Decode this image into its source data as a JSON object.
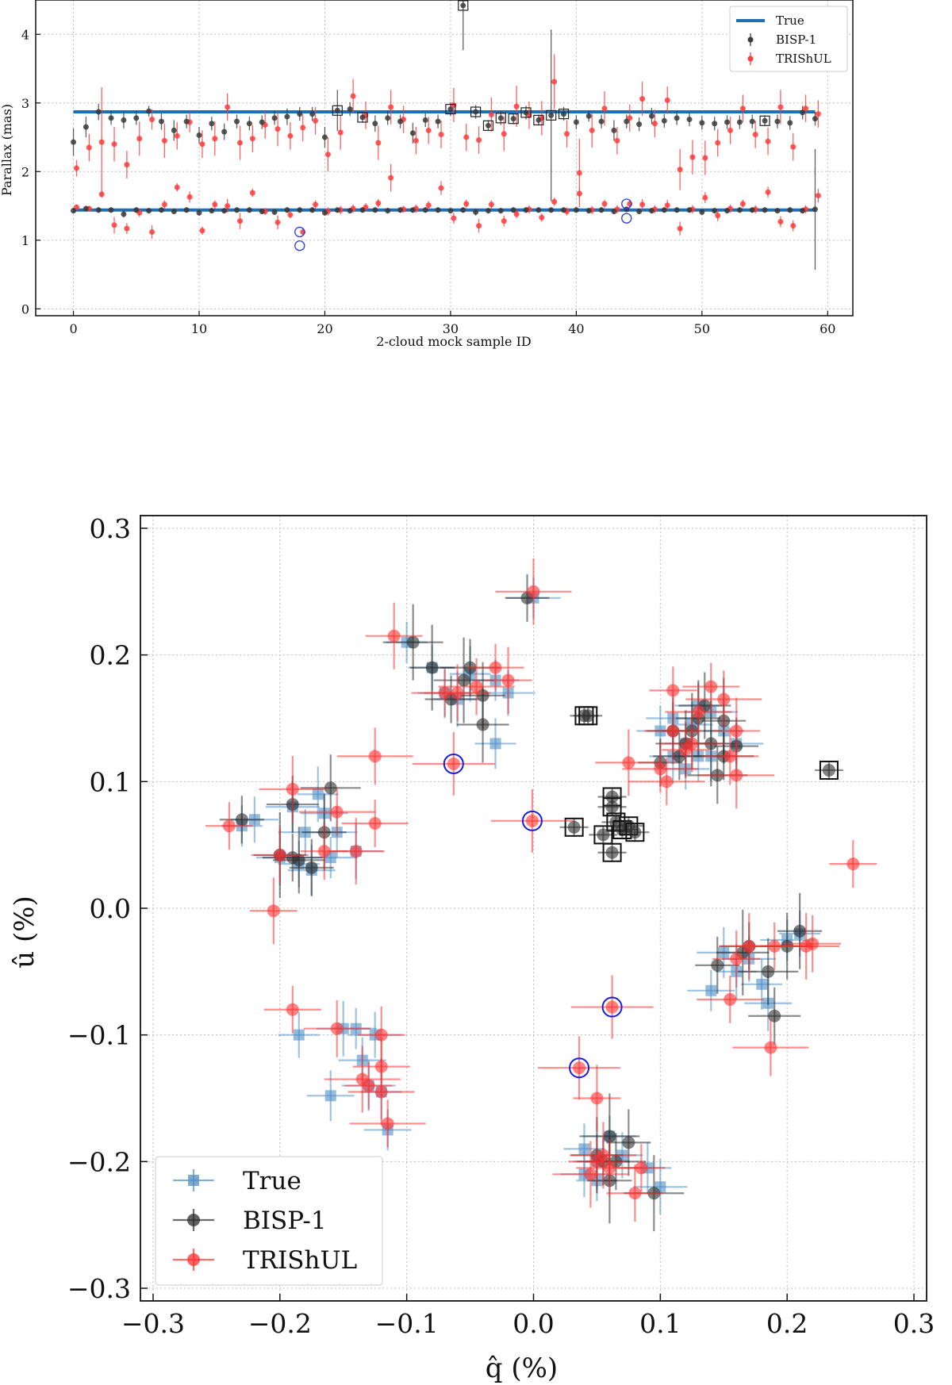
{
  "chart_data": [
    {
      "type": "scatter",
      "title": "",
      "xlabel": "2-cloud mock sample ID",
      "ylabel": "Parallax (mas)",
      "xlim": [
        -3,
        62
      ],
      "ylim": [
        -0.1,
        4.5
      ],
      "xticks": [
        0,
        10,
        20,
        30,
        40,
        50,
        60
      ],
      "yticks": [
        0,
        1,
        2,
        3,
        4
      ],
      "grid": true,
      "legend_position": "top-right",
      "legend": [
        "True",
        "BISP-1",
        "TRIShUL"
      ],
      "colors": {
        "true": "#1f6fb4",
        "bisp": "#3a3a3a",
        "trishul": "#ff3b3b",
        "ring": "#2b35e6"
      },
      "true_far": 2.87,
      "true_near": 1.44,
      "bisp_far": [
        2.43,
        2.65,
        2.87,
        2.78,
        2.75,
        2.78,
        2.88,
        2.73,
        2.6,
        2.73,
        2.53,
        2.7,
        2.58,
        2.73,
        2.7,
        2.72,
        2.78,
        2.8,
        2.84,
        2.84,
        2.5,
        2.89,
        2.91,
        2.79,
        2.7,
        2.78,
        2.73,
        2.56,
        2.75,
        2.73,
        2.91,
        4.42,
        2.87,
        2.67,
        2.78,
        2.77,
        2.86,
        2.75,
        2.82,
        2.84,
        2.72,
        2.81,
        2.73,
        2.6,
        2.73,
        2.69,
        2.81,
        2.74,
        2.78,
        2.76,
        2.71,
        2.7,
        2.72,
        2.72,
        2.73,
        2.74,
        2.73,
        2.71,
        2.86,
        2.77
      ],
      "bisp_far_err": [
        0.2,
        0.15,
        0.12,
        0.1,
        0.12,
        0.1,
        0.08,
        0.12,
        0.15,
        0.1,
        0.12,
        0.1,
        0.12,
        0.1,
        0.1,
        0.1,
        0.1,
        0.12,
        0.1,
        0.1,
        0.15,
        0.3,
        0.1,
        0.08,
        0.12,
        0.1,
        0.1,
        0.15,
        0.1,
        0.1,
        0.1,
        0.65,
        0.1,
        0.08,
        0.1,
        0.08,
        0.1,
        0.08,
        1.25,
        0.1,
        0.1,
        0.08,
        0.1,
        0.15,
        0.1,
        0.1,
        0.12,
        0.1,
        0.1,
        0.1,
        0.1,
        0.1,
        0.1,
        0.1,
        0.1,
        0.08,
        0.1,
        0.1,
        0.1,
        0.1
      ],
      "trishul_far": [
        2.05,
        2.35,
        2.43,
        2.4,
        2.1,
        2.48,
        2.76,
        2.45,
        2.52,
        2.72,
        2.4,
        2.48,
        2.94,
        2.42,
        2.48,
        2.68,
        2.62,
        2.52,
        2.64,
        2.74,
        2.25,
        2.57,
        3.1,
        2.82,
        2.42,
        2.94,
        2.76,
        2.45,
        2.6,
        2.54,
        2.97,
        2.5,
        2.46,
        2.83,
        2.55,
        2.95,
        2.82,
        2.78,
        3.31,
        2.55,
        1.98,
        2.6,
        2.92,
        2.45,
        2.78,
        3.06,
        2.7,
        3.04,
        2.03,
        2.21,
        2.2,
        2.42,
        2.6,
        2.92,
        2.54,
        2.44,
        2.94,
        2.36,
        2.92,
        2.84
      ],
      "trishul_far_err": [
        0.12,
        0.2,
        0.8,
        0.25,
        0.2,
        0.25,
        0.15,
        0.25,
        0.2,
        0.15,
        0.2,
        0.25,
        0.2,
        0.25,
        0.2,
        0.2,
        0.25,
        0.2,
        0.2,
        0.2,
        0.25,
        0.25,
        0.25,
        0.2,
        0.25,
        0.25,
        0.2,
        0.2,
        0.2,
        0.2,
        0.25,
        0.2,
        0.2,
        0.25,
        0.25,
        0.3,
        0.2,
        0.25,
        0.4,
        0.2,
        0.5,
        0.25,
        0.25,
        0.2,
        0.2,
        0.25,
        0.2,
        0.2,
        0.3,
        0.25,
        0.25,
        0.2,
        0.2,
        0.2,
        0.2,
        0.2,
        0.25,
        0.2,
        0.2,
        0.2
      ],
      "bisp_near": [
        1.43,
        1.46,
        1.44,
        1.44,
        1.38,
        1.44,
        1.43,
        1.44,
        1.42,
        1.44,
        1.4,
        1.43,
        1.43,
        1.44,
        1.44,
        1.42,
        1.41,
        1.44,
        1.44,
        1.44,
        1.4,
        1.44,
        1.43,
        1.44,
        1.44,
        1.43,
        1.44,
        1.44,
        1.44,
        1.44,
        1.43,
        1.44,
        1.41,
        1.43,
        1.43,
        1.44,
        1.44,
        1.44,
        1.44,
        1.44,
        1.44,
        1.43,
        1.44,
        1.42,
        1.45,
        1.42,
        1.43,
        1.44,
        1.44,
        1.44,
        1.41,
        1.43,
        1.43,
        1.44,
        1.44,
        1.44,
        1.43,
        1.44,
        1.43,
        1.45
      ],
      "bisp_near_err": [
        0.04,
        0.04,
        0.04,
        0.04,
        0.05,
        0.04,
        0.04,
        0.04,
        0.04,
        0.04,
        0.04,
        0.04,
        0.04,
        0.04,
        0.04,
        0.04,
        0.04,
        0.04,
        0.04,
        0.04,
        0.04,
        0.04,
        0.04,
        0.04,
        0.04,
        0.04,
        0.04,
        0.04,
        0.04,
        0.04,
        0.04,
        0.04,
        0.05,
        0.04,
        0.04,
        0.04,
        0.04,
        0.04,
        0.04,
        0.04,
        0.04,
        0.04,
        0.04,
        0.04,
        0.04,
        0.04,
        0.04,
        0.04,
        0.04,
        0.04,
        0.04,
        0.04,
        0.04,
        0.04,
        0.04,
        0.04,
        0.04,
        0.04,
        0.04,
        0.88
      ],
      "trishul_near": [
        1.48,
        1.46,
        1.67,
        1.22,
        1.17,
        1.4,
        1.12,
        1.52,
        1.77,
        1.63,
        1.14,
        1.52,
        1.5,
        1.28,
        1.69,
        1.42,
        1.26,
        1.37,
        1.12,
        1.52,
        1.42,
        1.44,
        1.46,
        1.48,
        1.54,
        1.91,
        1.45,
        1.46,
        1.51,
        1.76,
        1.32,
        1.53,
        1.21,
        1.52,
        1.28,
        1.38,
        1.45,
        1.33,
        1.56,
        1.42,
        1.68,
        1.44,
        1.53,
        1.45,
        1.53,
        1.52,
        1.45,
        1.51,
        1.17,
        1.45,
        1.62,
        1.36,
        1.46,
        1.53,
        1.45,
        1.7,
        1.27,
        1.21,
        1.45,
        1.65
      ],
      "trishul_near_err": [
        0.04,
        0.04,
        0.05,
        0.12,
        0.08,
        0.06,
        0.1,
        0.06,
        0.06,
        0.08,
        0.06,
        0.06,
        0.1,
        0.12,
        0.06,
        0.05,
        0.1,
        0.05,
        0.05,
        0.06,
        0.06,
        0.06,
        0.06,
        0.06,
        0.06,
        0.2,
        0.05,
        0.06,
        0.06,
        0.1,
        0.08,
        0.06,
        0.1,
        0.06,
        0.08,
        0.06,
        0.06,
        0.06,
        0.06,
        0.06,
        0.06,
        0.06,
        0.06,
        0.06,
        0.06,
        0.08,
        0.06,
        0.08,
        0.1,
        0.06,
        0.08,
        0.08,
        0.06,
        0.06,
        0.06,
        0.08,
        0.08,
        0.08,
        0.06,
        0.1
      ],
      "boxed_far_ids": [
        21,
        23,
        30,
        31,
        32,
        33,
        34,
        35,
        36,
        37,
        38,
        39,
        55
      ],
      "ringed_points": [
        [
          18,
          1.12
        ],
        [
          18,
          0.92
        ],
        [
          44,
          1.53
        ],
        [
          44,
          1.32
        ]
      ]
    },
    {
      "type": "scatter",
      "title": "",
      "xlabel": "q̂ (%)",
      "ylabel": "û (%)",
      "xlim": [
        -0.31,
        0.31
      ],
      "ylim": [
        -0.31,
        0.31
      ],
      "xticks": [
        -0.3,
        -0.2,
        -0.1,
        0.0,
        0.1,
        0.2,
        0.3
      ],
      "yticks": [
        -0.3,
        -0.2,
        -0.1,
        0.0,
        0.1,
        0.2,
        0.3
      ],
      "tick_labels": [
        "−0.3",
        "−0.2",
        "−0.1",
        "0.0",
        "0.1",
        "0.2",
        "0.3"
      ],
      "grid": true,
      "legend_position": "bottom-left",
      "legend": [
        "True",
        "BISP-1",
        "TRIShUL"
      ],
      "colors": {
        "true": "#4f8fc4",
        "bisp": "#2d2d2d",
        "trishul": "#ff3030",
        "ring": "#1a1ae6"
      },
      "true_points": [
        [
          -0.23,
          0.065
        ],
        [
          -0.22,
          0.07
        ],
        [
          -0.19,
          0.08
        ],
        [
          -0.17,
          0.09
        ],
        [
          -0.165,
          0.075
        ],
        [
          -0.18,
          0.06
        ],
        [
          -0.155,
          0.06
        ],
        [
          -0.2,
          0.04
        ],
        [
          -0.16,
          0.04
        ],
        [
          -0.185,
          0.035
        ],
        [
          -0.175,
          0.03
        ],
        [
          -0.14,
          0.045
        ],
        [
          -0.1,
          0.21
        ],
        [
          -0.08,
          0.19
        ],
        [
          -0.07,
          0.17
        ],
        [
          -0.05,
          0.185
        ],
        [
          -0.03,
          0.18
        ],
        [
          -0.02,
          0.17
        ],
        [
          -0.03,
          0.13
        ],
        [
          -0.06,
          0.165
        ],
        [
          0.0,
          0.245
        ],
        [
          -0.185,
          -0.1
        ],
        [
          -0.16,
          -0.148
        ],
        [
          -0.15,
          -0.095
        ],
        [
          -0.14,
          -0.095
        ],
        [
          -0.135,
          -0.12
        ],
        [
          -0.13,
          -0.14
        ],
        [
          -0.12,
          -0.145
        ],
        [
          -0.115,
          -0.175
        ],
        [
          -0.125,
          -0.1
        ],
        [
          0.04,
          -0.19
        ],
        [
          0.05,
          -0.2
        ],
        [
          0.06,
          -0.18
        ],
        [
          0.07,
          -0.195
        ],
        [
          0.09,
          -0.205
        ],
        [
          0.1,
          -0.22
        ],
        [
          0.05,
          -0.215
        ],
        [
          0.04,
          -0.21
        ],
        [
          0.15,
          -0.035
        ],
        [
          0.16,
          -0.05
        ],
        [
          0.14,
          -0.065
        ],
        [
          0.17,
          -0.04
        ],
        [
          0.18,
          -0.06
        ],
        [
          0.185,
          -0.075
        ],
        [
          0.2,
          -0.025
        ],
        [
          0.21,
          -0.02
        ],
        [
          0.1,
          0.14
        ],
        [
          0.11,
          0.15
        ],
        [
          0.12,
          0.13
        ],
        [
          0.13,
          0.16
        ],
        [
          0.14,
          0.12
        ],
        [
          0.15,
          0.14
        ],
        [
          0.12,
          0.11
        ],
        [
          0.14,
          0.155
        ],
        [
          0.13,
          0.12
        ],
        [
          0.11,
          0.12
        ],
        [
          0.16,
          0.13
        ],
        [
          0.125,
          0.145
        ]
      ],
      "bisp_points": [
        [
          -0.23,
          0.07
        ],
        [
          -0.19,
          0.082
        ],
        [
          -0.16,
          0.095
        ],
        [
          -0.165,
          0.06
        ],
        [
          -0.2,
          0.042
        ],
        [
          -0.19,
          0.04
        ],
        [
          -0.175,
          0.032
        ],
        [
          -0.185,
          0.038
        ],
        [
          -0.095,
          0.21
        ],
        [
          -0.08,
          0.19
        ],
        [
          -0.065,
          0.165
        ],
        [
          -0.05,
          0.19
        ],
        [
          -0.04,
          0.168
        ],
        [
          -0.04,
          0.145
        ],
        [
          -0.055,
          0.18
        ],
        [
          -0.005,
          0.245
        ],
        [
          0.19,
          -0.085
        ],
        [
          0.185,
          -0.05
        ],
        [
          0.21,
          -0.018
        ],
        [
          0.165,
          -0.035
        ],
        [
          0.17,
          -0.03
        ],
        [
          0.145,
          -0.045
        ],
        [
          0.2,
          -0.03
        ],
        [
          0.095,
          -0.225
        ],
        [
          0.06,
          -0.215
        ],
        [
          0.055,
          -0.2
        ],
        [
          0.065,
          -0.2
        ],
        [
          0.075,
          -0.185
        ],
        [
          0.05,
          -0.195
        ],
        [
          0.06,
          -0.18
        ],
        [
          0.1,
          0.115
        ],
        [
          0.11,
          0.14
        ],
        [
          0.12,
          0.13
        ],
        [
          0.13,
          0.15
        ],
        [
          0.14,
          0.13
        ],
        [
          0.15,
          0.12
        ],
        [
          0.16,
          0.128
        ],
        [
          0.135,
          0.16
        ],
        [
          0.125,
          0.14
        ],
        [
          0.15,
          0.148
        ],
        [
          0.115,
          0.12
        ],
        [
          0.145,
          0.105
        ]
      ],
      "trishul_points": [
        [
          -0.24,
          0.065
        ],
        [
          -0.2,
          0.042
        ],
        [
          -0.19,
          0.094
        ],
        [
          -0.155,
          0.076
        ],
        [
          -0.165,
          0.045
        ],
        [
          -0.14,
          0.045
        ],
        [
          -0.125,
          0.067
        ],
        [
          -0.125,
          0.12
        ],
        [
          -0.205,
          -0.002
        ],
        [
          -0.19,
          -0.08
        ],
        [
          -0.155,
          -0.095
        ],
        [
          -0.135,
          -0.135
        ],
        [
          -0.13,
          -0.14
        ],
        [
          -0.12,
          -0.125
        ],
        [
          -0.12,
          -0.145
        ],
        [
          -0.115,
          -0.17
        ],
        [
          -0.12,
          -0.1
        ],
        [
          -0.11,
          0.215
        ],
        [
          -0.07,
          0.17
        ],
        [
          -0.045,
          0.175
        ],
        [
          -0.02,
          0.18
        ],
        [
          -0.03,
          0.19
        ],
        [
          -0.06,
          0.17
        ],
        [
          0.0,
          0.25
        ],
        [
          0.252,
          0.035
        ],
        [
          0.22,
          -0.028
        ],
        [
          0.215,
          -0.03
        ],
        [
          0.19,
          -0.03
        ],
        [
          0.16,
          -0.04
        ],
        [
          0.17,
          -0.03
        ],
        [
          0.155,
          -0.072
        ],
        [
          0.187,
          -0.11
        ],
        [
          0.05,
          -0.15
        ],
        [
          0.05,
          -0.2
        ],
        [
          0.06,
          -0.205
        ],
        [
          0.045,
          -0.21
        ],
        [
          0.085,
          -0.205
        ],
        [
          0.08,
          -0.225
        ],
        [
          0.055,
          -0.195
        ],
        [
          0.1,
          0.11
        ],
        [
          0.12,
          0.125
        ],
        [
          0.11,
          0.14
        ],
        [
          0.13,
          0.155
        ],
        [
          0.15,
          0.165
        ],
        [
          0.16,
          0.14
        ],
        [
          0.14,
          0.175
        ],
        [
          0.125,
          0.13
        ],
        [
          0.16,
          0.105
        ],
        [
          0.11,
          0.172
        ],
        [
          0.155,
          0.12
        ],
        [
          0.075,
          0.115
        ],
        [
          0.105,
          0.1
        ]
      ],
      "boxed_points": [
        [
          0.04,
          0.152
        ],
        [
          0.043,
          0.152
        ],
        [
          0.233,
          0.109
        ],
        [
          0.032,
          0.064
        ],
        [
          0.062,
          0.088
        ],
        [
          0.062,
          0.08
        ],
        [
          0.065,
          0.068
        ],
        [
          0.07,
          0.062
        ],
        [
          0.075,
          0.065
        ],
        [
          0.08,
          0.06
        ],
        [
          0.055,
          0.058
        ],
        [
          0.062,
          0.044
        ]
      ],
      "ringed_points": [
        [
          -0.063,
          0.114
        ],
        [
          -0.001,
          0.069
        ],
        [
          0.062,
          -0.078
        ],
        [
          0.036,
          -0.126
        ]
      ]
    }
  ]
}
